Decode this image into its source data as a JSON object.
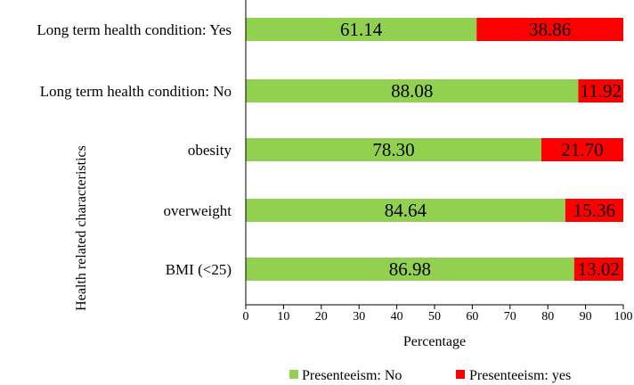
{
  "chart_data": {
    "type": "bar",
    "orientation": "horizontal",
    "stacked": true,
    "categories": [
      "Long term health condition: Yes",
      "Long term health condition: No",
      "obesity",
      "overweight",
      "BMI (<25)"
    ],
    "series": [
      {
        "name": "Presenteeism: No",
        "color": "#92D050",
        "values": [
          61.14,
          88.08,
          78.3,
          84.64,
          86.98
        ],
        "labels": [
          "61.14",
          "88.08",
          "78.30",
          "84.64",
          "86.98"
        ]
      },
      {
        "name": "Presenteeism: yes",
        "color": "#FF0000",
        "values": [
          38.86,
          11.92,
          21.7,
          15.36,
          13.02
        ],
        "labels": [
          "38.86",
          "11.92",
          "21.70",
          "15.36",
          "13.02"
        ]
      }
    ],
    "title": "",
    "xlabel": "Percentage",
    "ylabel": "Health related characteristics",
    "xlim": [
      0,
      100
    ],
    "xticks": [
      "0",
      "10",
      "20",
      "30",
      "40",
      "50",
      "60",
      "70",
      "80",
      "90",
      "100"
    ],
    "legend_position": "bottom"
  }
}
